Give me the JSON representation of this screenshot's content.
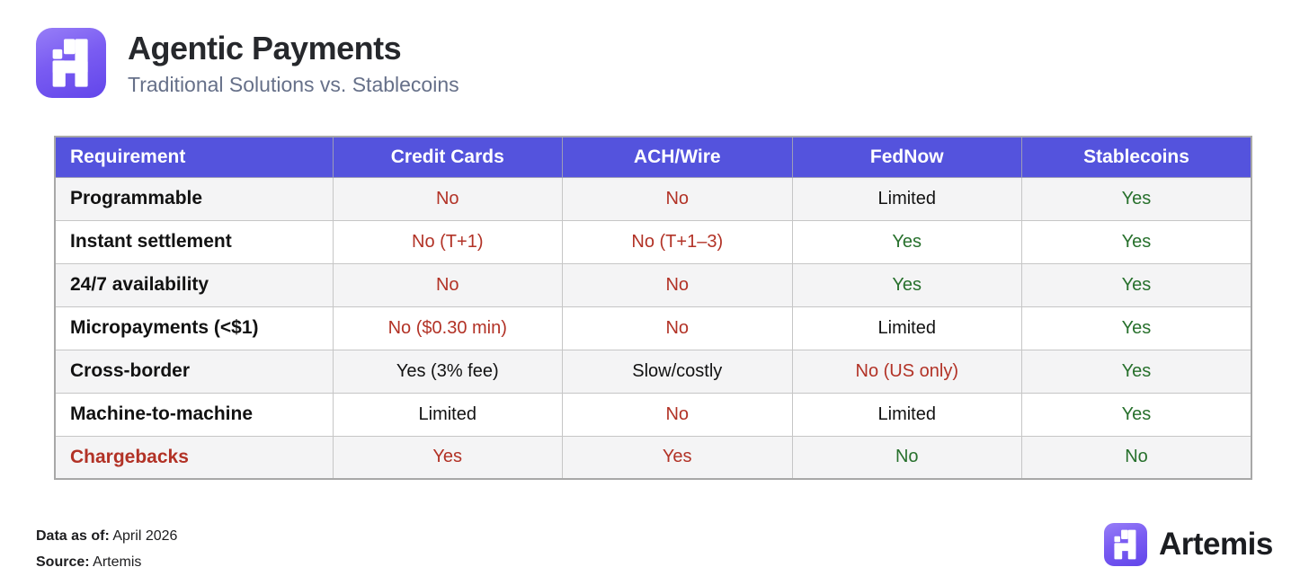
{
  "header": {
    "title": "Agentic Payments",
    "subtitle": "Traditional Solutions vs. Stablecoins"
  },
  "chart_data": {
    "type": "table",
    "title": "Agentic Payments",
    "subtitle": "Traditional Solutions vs. Stablecoins",
    "columns": [
      "Requirement",
      "Credit Cards",
      "ACH/Wire",
      "FedNow",
      "Stablecoins"
    ],
    "rows": [
      {
        "label": "Programmable",
        "label_tone": "default",
        "cells": [
          {
            "text": "No",
            "tone": "bad"
          },
          {
            "text": "No",
            "tone": "bad"
          },
          {
            "text": "Limited",
            "tone": "neutral"
          },
          {
            "text": "Yes",
            "tone": "good"
          }
        ]
      },
      {
        "label": "Instant settlement",
        "label_tone": "default",
        "cells": [
          {
            "text": "No (T+1)",
            "tone": "bad"
          },
          {
            "text": "No (T+1–3)",
            "tone": "bad"
          },
          {
            "text": "Yes",
            "tone": "good"
          },
          {
            "text": "Yes",
            "tone": "good"
          }
        ]
      },
      {
        "label": "24/7 availability",
        "label_tone": "default",
        "cells": [
          {
            "text": "No",
            "tone": "bad"
          },
          {
            "text": "No",
            "tone": "bad"
          },
          {
            "text": "Yes",
            "tone": "good"
          },
          {
            "text": "Yes",
            "tone": "good"
          }
        ]
      },
      {
        "label": "Micropayments (<$1)",
        "label_tone": "default",
        "cells": [
          {
            "text": "No ($0.30 min)",
            "tone": "bad"
          },
          {
            "text": "No",
            "tone": "bad"
          },
          {
            "text": "Limited",
            "tone": "neutral"
          },
          {
            "text": "Yes",
            "tone": "good"
          }
        ]
      },
      {
        "label": "Cross-border",
        "label_tone": "default",
        "cells": [
          {
            "text": "Yes (3% fee)",
            "tone": "neutral"
          },
          {
            "text": "Slow/costly",
            "tone": "neutral"
          },
          {
            "text": "No (US only)",
            "tone": "bad"
          },
          {
            "text": "Yes",
            "tone": "good"
          }
        ]
      },
      {
        "label": "Machine-to-machine",
        "label_tone": "default",
        "cells": [
          {
            "text": "Limited",
            "tone": "neutral"
          },
          {
            "text": "No",
            "tone": "bad"
          },
          {
            "text": "Limited",
            "tone": "neutral"
          },
          {
            "text": "Yes",
            "tone": "good"
          }
        ]
      },
      {
        "label": "Chargebacks",
        "label_tone": "bad",
        "cells": [
          {
            "text": "Yes",
            "tone": "bad"
          },
          {
            "text": "Yes",
            "tone": "bad"
          },
          {
            "text": "No",
            "tone": "good"
          },
          {
            "text": "No",
            "tone": "good"
          }
        ]
      }
    ],
    "layout": {
      "header_row": true,
      "striped": true,
      "first_column_align": "left",
      "value_align": "center"
    }
  },
  "colors": {
    "header_bg": "#5453dd",
    "negative_text": "#b23226",
    "positive_text": "#27702c",
    "neutral_text": "#121212",
    "stripe_row": "#f4f4f5",
    "brand_purple_light": "#977ef7",
    "brand_purple_dark": "#6246ea"
  },
  "icons": {
    "brand_glyph": "artemis-pixel-a"
  },
  "footer": {
    "data_as_of_label": "Data as of:",
    "data_as_of_value": "April 2026",
    "source_label": "Source:",
    "source_value": "Artemis",
    "brand_name": "Artemis"
  }
}
